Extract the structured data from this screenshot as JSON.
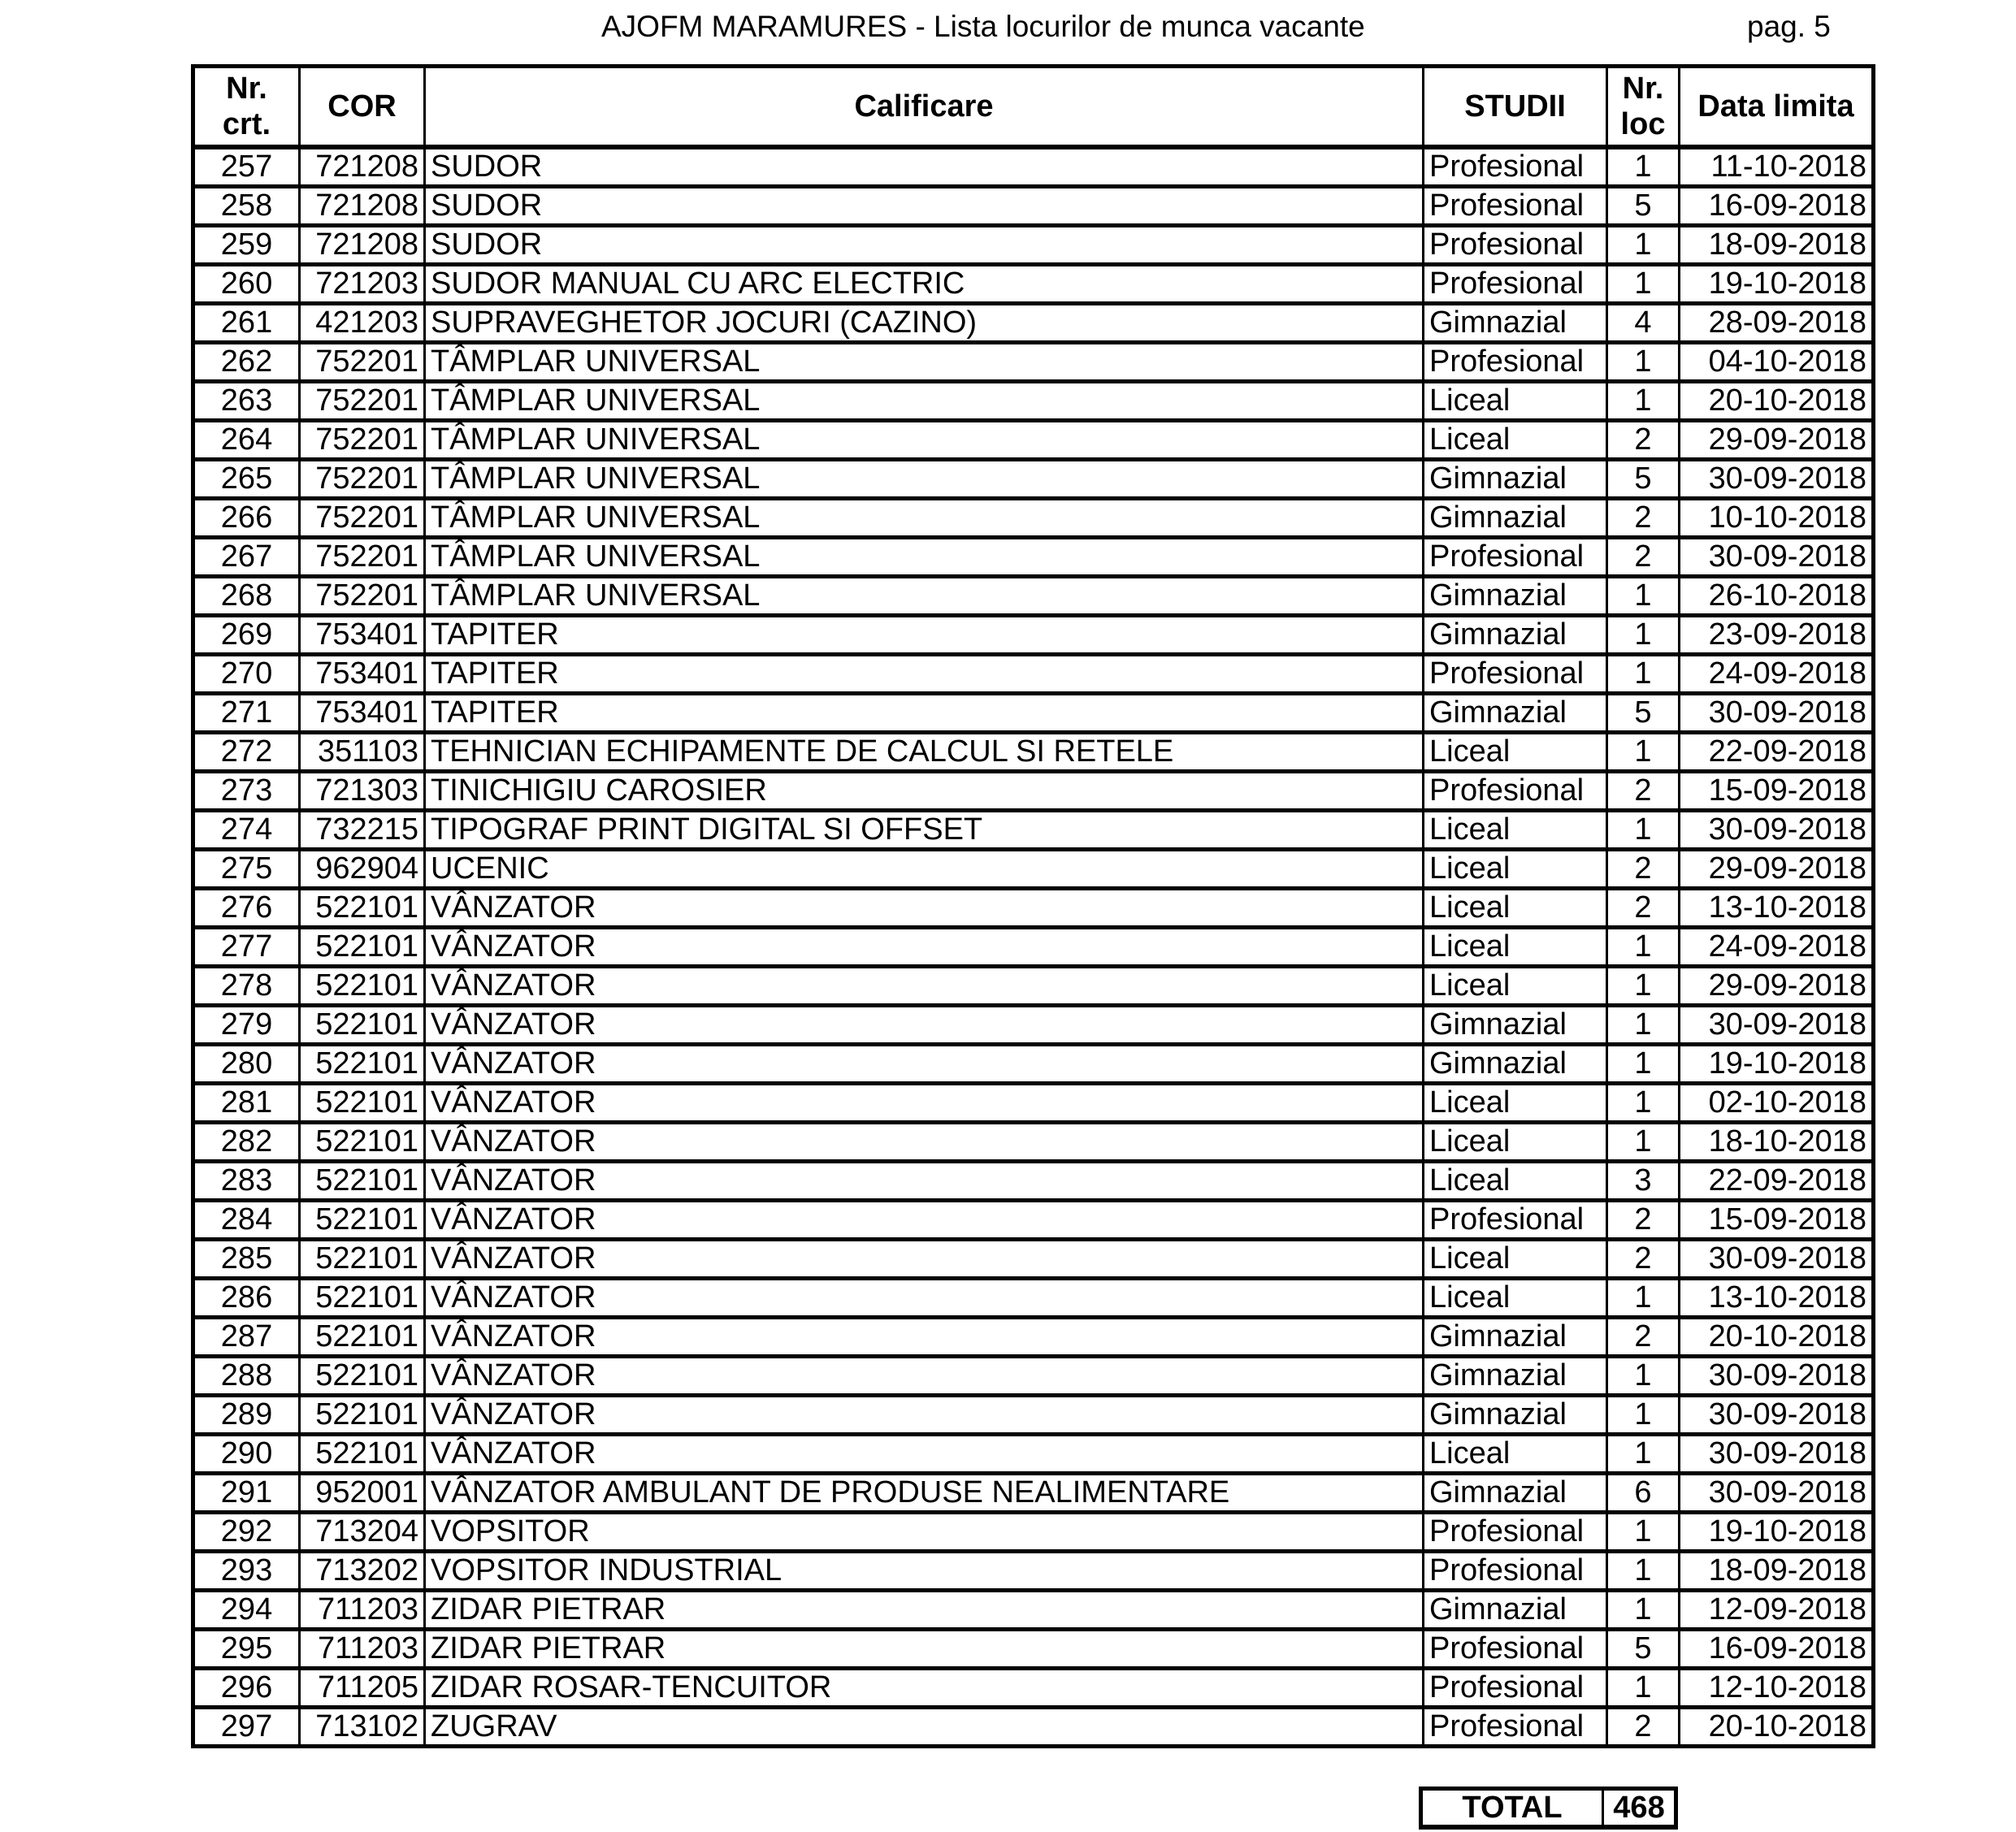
{
  "header": {
    "title": "AJOFM MARAMURES - Lista locurilor de munca vacante",
    "page": "pag. 5"
  },
  "columns": [
    "Nr. crt.",
    "COR",
    "Calificare",
    "STUDII",
    "Nr. loc",
    "Data limita"
  ],
  "rows": [
    [
      "257",
      "721208",
      "SUDOR",
      "Profesional",
      "1",
      "11-10-2018"
    ],
    [
      "258",
      "721208",
      "SUDOR",
      "Profesional",
      "5",
      "16-09-2018"
    ],
    [
      "259",
      "721208",
      "SUDOR",
      "Profesional",
      "1",
      "18-09-2018"
    ],
    [
      "260",
      "721203",
      "SUDOR MANUAL CU ARC ELECTRIC",
      "Profesional",
      "1",
      "19-10-2018"
    ],
    [
      "261",
      "421203",
      "SUPRAVEGHETOR JOCURI (CAZINO)",
      "Gimnazial",
      "4",
      "28-09-2018"
    ],
    [
      "262",
      "752201",
      "TÂMPLAR UNIVERSAL",
      "Profesional",
      "1",
      "04-10-2018"
    ],
    [
      "263",
      "752201",
      "TÂMPLAR UNIVERSAL",
      "Liceal",
      "1",
      "20-10-2018"
    ],
    [
      "264",
      "752201",
      "TÂMPLAR UNIVERSAL",
      "Liceal",
      "2",
      "29-09-2018"
    ],
    [
      "265",
      "752201",
      "TÂMPLAR UNIVERSAL",
      "Gimnazial",
      "5",
      "30-09-2018"
    ],
    [
      "266",
      "752201",
      "TÂMPLAR UNIVERSAL",
      "Gimnazial",
      "2",
      "10-10-2018"
    ],
    [
      "267",
      "752201",
      "TÂMPLAR UNIVERSAL",
      "Profesional",
      "2",
      "30-09-2018"
    ],
    [
      "268",
      "752201",
      "TÂMPLAR UNIVERSAL",
      "Gimnazial",
      "1",
      "26-10-2018"
    ],
    [
      "269",
      "753401",
      "TAPITER",
      "Gimnazial",
      "1",
      "23-09-2018"
    ],
    [
      "270",
      "753401",
      "TAPITER",
      "Profesional",
      "1",
      "24-09-2018"
    ],
    [
      "271",
      "753401",
      "TAPITER",
      "Gimnazial",
      "5",
      "30-09-2018"
    ],
    [
      "272",
      "351103",
      "TEHNICIAN ECHIPAMENTE DE CALCUL SI RETELE",
      "Liceal",
      "1",
      "22-09-2018"
    ],
    [
      "273",
      "721303",
      "TINICHIGIU CAROSIER",
      "Profesional",
      "2",
      "15-09-2018"
    ],
    [
      "274",
      "732215",
      "TIPOGRAF PRINT DIGITAL SI OFFSET",
      "Liceal",
      "1",
      "30-09-2018"
    ],
    [
      "275",
      "962904",
      "UCENIC",
      "Liceal",
      "2",
      "29-09-2018"
    ],
    [
      "276",
      "522101",
      "VÂNZATOR",
      "Liceal",
      "2",
      "13-10-2018"
    ],
    [
      "277",
      "522101",
      "VÂNZATOR",
      "Liceal",
      "1",
      "24-09-2018"
    ],
    [
      "278",
      "522101",
      "VÂNZATOR",
      "Liceal",
      "1",
      "29-09-2018"
    ],
    [
      "279",
      "522101",
      "VÂNZATOR",
      "Gimnazial",
      "1",
      "30-09-2018"
    ],
    [
      "280",
      "522101",
      "VÂNZATOR",
      "Gimnazial",
      "1",
      "19-10-2018"
    ],
    [
      "281",
      "522101",
      "VÂNZATOR",
      "Liceal",
      "1",
      "02-10-2018"
    ],
    [
      "282",
      "522101",
      "VÂNZATOR",
      "Liceal",
      "1",
      "18-10-2018"
    ],
    [
      "283",
      "522101",
      "VÂNZATOR",
      "Liceal",
      "3",
      "22-09-2018"
    ],
    [
      "284",
      "522101",
      "VÂNZATOR",
      "Profesional",
      "2",
      "15-09-2018"
    ],
    [
      "285",
      "522101",
      "VÂNZATOR",
      "Liceal",
      "2",
      "30-09-2018"
    ],
    [
      "286",
      "522101",
      "VÂNZATOR",
      "Liceal",
      "1",
      "13-10-2018"
    ],
    [
      "287",
      "522101",
      "VÂNZATOR",
      "Gimnazial",
      "2",
      "20-10-2018"
    ],
    [
      "288",
      "522101",
      "VÂNZATOR",
      "Gimnazial",
      "1",
      "30-09-2018"
    ],
    [
      "289",
      "522101",
      "VÂNZATOR",
      "Gimnazial",
      "1",
      "30-09-2018"
    ],
    [
      "290",
      "522101",
      "VÂNZATOR",
      "Liceal",
      "1",
      "30-09-2018"
    ],
    [
      "291",
      "952001",
      "VÂNZATOR AMBULANT DE PRODUSE NEALIMENTARE",
      "Gimnazial",
      "6",
      "30-09-2018"
    ],
    [
      "292",
      "713204",
      "VOPSITOR",
      "Profesional",
      "1",
      "19-10-2018"
    ],
    [
      "293",
      "713202",
      "VOPSITOR INDUSTRIAL",
      "Profesional",
      "1",
      "18-09-2018"
    ],
    [
      "294",
      "711203",
      "ZIDAR PIETRAR",
      "Gimnazial",
      "1",
      "12-09-2018"
    ],
    [
      "295",
      "711203",
      "ZIDAR PIETRAR",
      "Profesional",
      "5",
      "16-09-2018"
    ],
    [
      "296",
      "711205",
      "ZIDAR ROSAR-TENCUITOR",
      "Profesional",
      "1",
      "12-10-2018"
    ],
    [
      "297",
      "713102",
      "ZUGRAV",
      "Profesional",
      "2",
      "20-10-2018"
    ]
  ],
  "total": {
    "label": "TOTAL",
    "value": "468"
  }
}
